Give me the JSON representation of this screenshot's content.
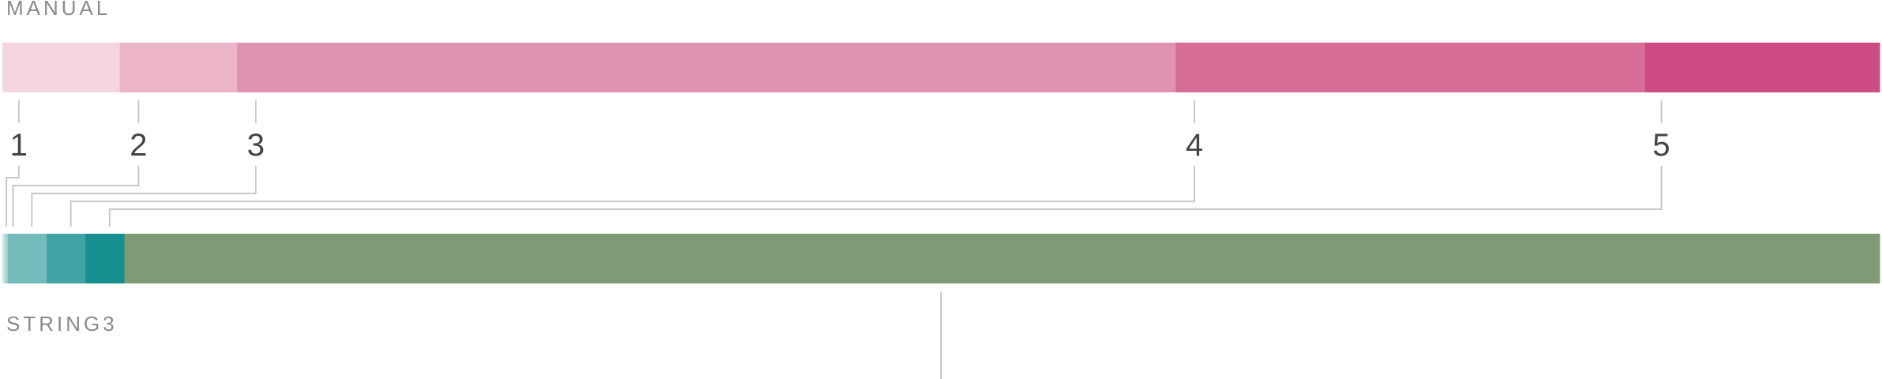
{
  "top_scale": {
    "label": "MANUAL",
    "segments": [
      {
        "start": 0,
        "end": 1,
        "color": "#f6d6de"
      },
      {
        "start": 1,
        "end": 2,
        "color": "#ecb5c9"
      },
      {
        "start": 2,
        "end": 10,
        "color": "#e092b1"
      },
      {
        "start": 10,
        "end": 14,
        "color": "#d66e98"
      },
      {
        "start": 14,
        "end": 16,
        "color": "#cc4b82"
      }
    ],
    "markers": [
      {
        "label": "1",
        "position": 0.14
      },
      {
        "label": "2",
        "position": 1.16
      },
      {
        "label": "3",
        "position": 2.16
      },
      {
        "label": "4",
        "position": 10.16
      },
      {
        "label": "5",
        "position": 14.14
      }
    ],
    "max": 16
  },
  "bottom_scale": {
    "label": "STRING3",
    "segments": [
      {
        "start": 0,
        "end": 0.08,
        "color": "#cfe5e3"
      },
      {
        "start": 0.08,
        "end": 0.16,
        "color": "#a9d2d0"
      },
      {
        "start": 0.16,
        "end": 1.32,
        "color": "#74bcbc"
      },
      {
        "start": 1.32,
        "end": 2.48,
        "color": "#42a3a6"
      },
      {
        "start": 2.48,
        "end": 3.64,
        "color": "#178f91"
      },
      {
        "start": 3.64,
        "end": 56,
        "color": "#7f9b76"
      }
    ],
    "marker_positions": [
      0.12,
      0.32,
      0.88,
      2.04,
      3.2
    ],
    "midpoint_tick": 28,
    "max": 56
  }
}
